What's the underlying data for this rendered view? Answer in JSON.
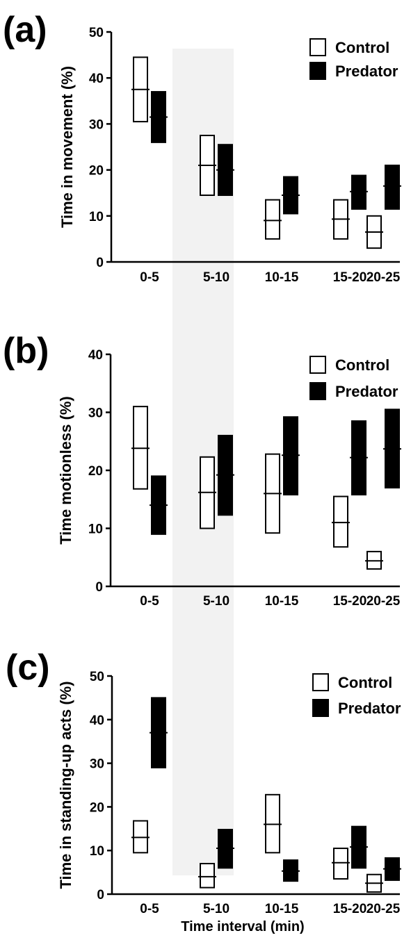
{
  "chart_data": [
    {
      "type": "box",
      "panel_label": "(a)",
      "ylabel": "Time in movement (%)",
      "xlabel": "",
      "ylim": [
        0,
        50
      ],
      "yticks": [
        "0",
        "10",
        "20",
        "30",
        "40",
        "50"
      ],
      "categories": [
        "0-5",
        "5-10",
        "10-15",
        "15-20",
        "20-25"
      ],
      "legend": {
        "position": "top-right",
        "entries": [
          "Control",
          "Predator"
        ]
      },
      "series": [
        {
          "name": "Control",
          "fill": "#ffffff",
          "low": [
            30.5,
            14.5,
            5,
            5,
            3
          ],
          "mean": [
            37.5,
            21,
            9,
            9.3,
            6.5
          ],
          "high": [
            44.5,
            27.5,
            13.5,
            13.5,
            10
          ]
        },
        {
          "name": "Predator",
          "fill": "#000000",
          "low": [
            26,
            14.5,
            10.5,
            11.5,
            11.5
          ],
          "mean": [
            31.5,
            20,
            14.5,
            15.3,
            16.5
          ],
          "high": [
            37,
            25.5,
            18.5,
            18.8,
            21
          ]
        }
      ]
    },
    {
      "type": "box",
      "panel_label": "(b)",
      "ylabel": "Time motionless (%)",
      "xlabel": "",
      "ylim": [
        0,
        40
      ],
      "yticks": [
        "0",
        "10",
        "20",
        "30",
        "40"
      ],
      "categories": [
        "0-5",
        "5-10",
        "10-15",
        "15-20",
        "20-25"
      ],
      "legend": {
        "position": "top-right",
        "entries": [
          "Control",
          "Predator"
        ]
      },
      "series": [
        {
          "name": "Control",
          "fill": "#ffffff",
          "low": [
            16.8,
            10,
            9.2,
            6.8,
            3
          ],
          "mean": [
            23.8,
            16.2,
            16,
            11,
            4.4
          ],
          "high": [
            31,
            22.3,
            22.8,
            15.5,
            6
          ]
        },
        {
          "name": "Predator",
          "fill": "#000000",
          "low": [
            9,
            12.3,
            15.8,
            15.8,
            17
          ],
          "mean": [
            14,
            19.2,
            22.6,
            22.2,
            23.7
          ],
          "high": [
            19,
            26,
            29.2,
            28.5,
            30.5
          ]
        }
      ]
    },
    {
      "type": "box",
      "panel_label": "(c)",
      "ylabel": "Time in standing-up acts (%)",
      "xlabel": "Time interval (min)",
      "ylim": [
        0,
        50
      ],
      "yticks": [
        "0",
        "10",
        "20",
        "30",
        "40",
        "50"
      ],
      "categories": [
        "0-5",
        "5-10",
        "10-15",
        "15-20",
        "20-25"
      ],
      "legend": {
        "position": "top-right",
        "entries": [
          "Control",
          "Predator"
        ]
      },
      "series": [
        {
          "name": "Control",
          "fill": "#ffffff",
          "low": [
            9.5,
            1.5,
            9.5,
            3.5,
            0.5
          ],
          "mean": [
            13,
            4,
            16,
            7.2,
            2.5
          ],
          "high": [
            16.8,
            7,
            22.8,
            10.5,
            4.5
          ]
        },
        {
          "name": "Predator",
          "fill": "#000000",
          "low": [
            29,
            6,
            3,
            6,
            3.2
          ],
          "mean": [
            37,
            10.5,
            5.3,
            10.8,
            5.8
          ],
          "high": [
            45,
            14.8,
            7.8,
            15.5,
            8.3
          ]
        }
      ]
    }
  ]
}
